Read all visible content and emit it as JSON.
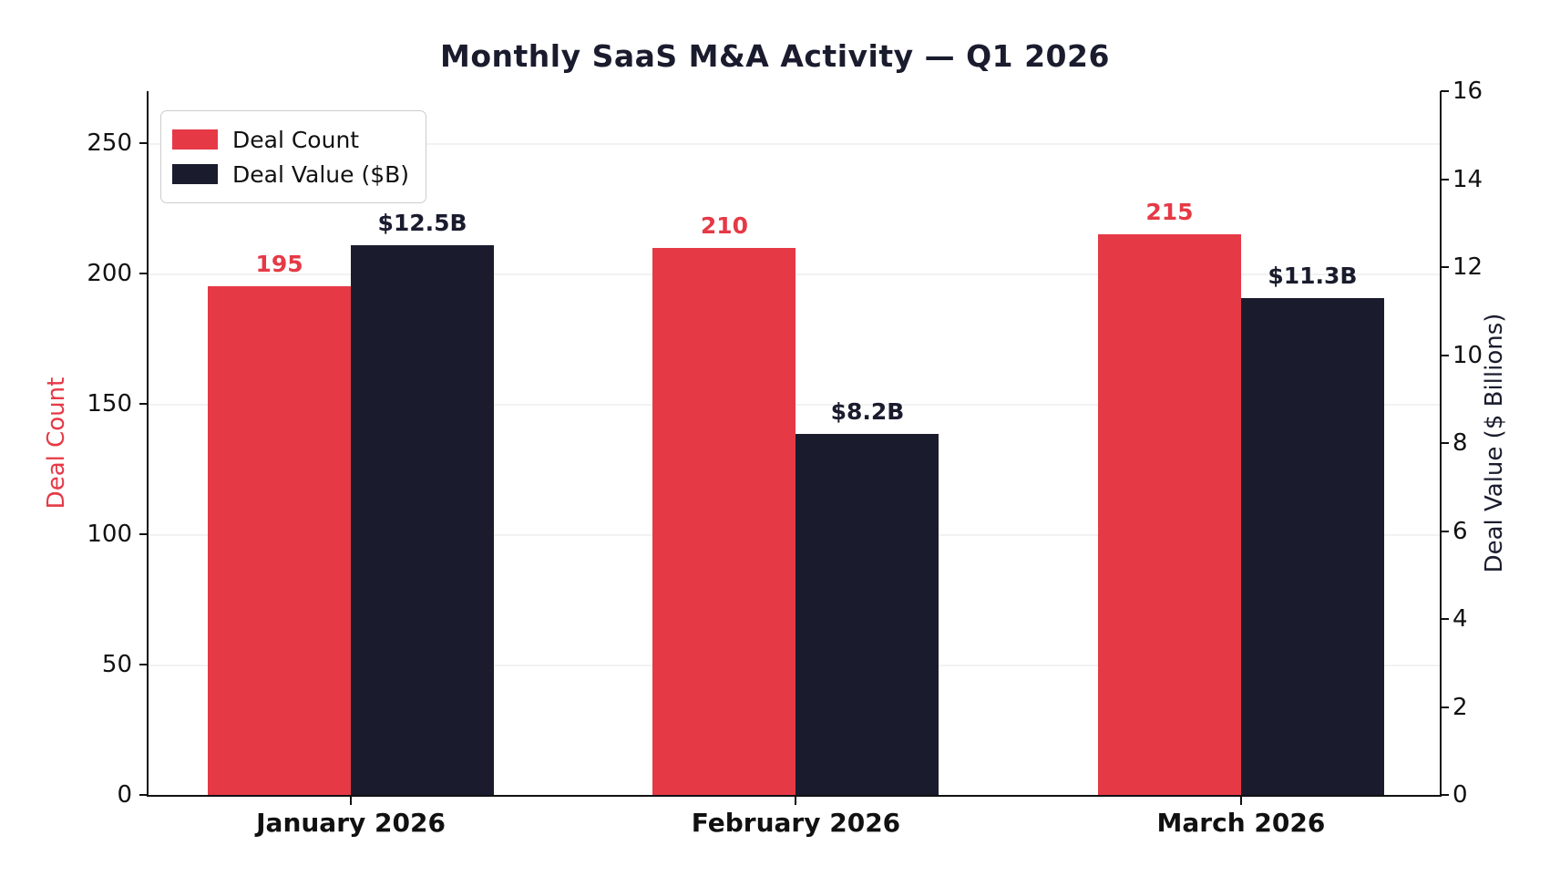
{
  "chart_data": {
    "type": "bar",
    "title": "Monthly SaaS M&A Activity — Q1 2026",
    "categories": [
      "January 2026",
      "February 2026",
      "March 2026"
    ],
    "series": [
      {
        "name": "Deal Count",
        "axis": "left",
        "color": "#e63946",
        "values": [
          195,
          210,
          215
        ],
        "labels": [
          "195",
          "210",
          "215"
        ]
      },
      {
        "name": "Deal Value ($B)",
        "axis": "right",
        "color": "#1a1c2e",
        "values": [
          12.5,
          8.2,
          11.3
        ],
        "labels": [
          "$12.5B",
          "$8.2B",
          "$11.3B"
        ]
      }
    ],
    "left_axis": {
      "label": "Deal Count",
      "color": "#e63946",
      "ticks": [
        0,
        50,
        100,
        150,
        200,
        250
      ],
      "ylim": [
        0,
        270
      ]
    },
    "right_axis": {
      "label": "Deal Value ($ Billions)",
      "color": "#1a1c2e",
      "ticks": [
        0,
        2,
        4,
        6,
        8,
        10,
        12,
        14,
        16
      ],
      "ylim": [
        0,
        16
      ]
    },
    "legend": {
      "position": "upper-left",
      "entries": [
        "Deal Count",
        "Deal Value ($B)"
      ]
    },
    "grid": "horizontal",
    "background": "#ffffff",
    "tick_color": "#111111"
  }
}
